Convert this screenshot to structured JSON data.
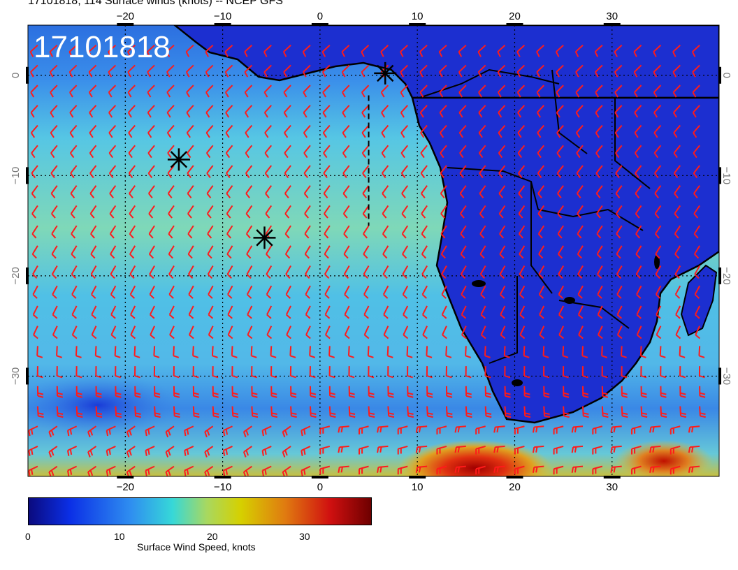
{
  "header": {
    "title": "17101818, 114 Surface winds (knots) -- NCEP GFS"
  },
  "map": {
    "overlay_label": "17101818",
    "lon_range": [
      -30,
      41
    ],
    "lat_range": [
      -40,
      5
    ],
    "lon_ticks": [
      "−20",
      "−10",
      "0",
      "10",
      "20",
      "30"
    ],
    "lat_ticks": [
      "0",
      "−10",
      "−20",
      "−30"
    ],
    "grid_lons": [
      -20,
      -10,
      0,
      10,
      20,
      30
    ],
    "grid_lats": [
      0,
      -10,
      -20,
      -30
    ],
    "land_color": "#1c2fd0",
    "ocean_base_color": "#52b8e8",
    "barb_color": "#ff1a1a",
    "markers": [
      {
        "lon": 6.7,
        "lat": 0.2
      },
      {
        "lon": -14.5,
        "lat": -8.4
      },
      {
        "lon": -5.7,
        "lat": -16.2
      }
    ],
    "dashed_line": [
      [
        5,
        -2
      ],
      [
        5,
        -15
      ]
    ]
  },
  "colorbar": {
    "label": "Surface Wind Speed, knots",
    "ticks": [
      "0",
      "10",
      "20",
      "30"
    ],
    "range": [
      0,
      37
    ],
    "colors": [
      "#0b0a7e",
      "#0b2fe6",
      "#2f8ff0",
      "#36d8d8",
      "#a8d860",
      "#d6d000",
      "#e07a10",
      "#d01010",
      "#6e0000"
    ]
  }
}
